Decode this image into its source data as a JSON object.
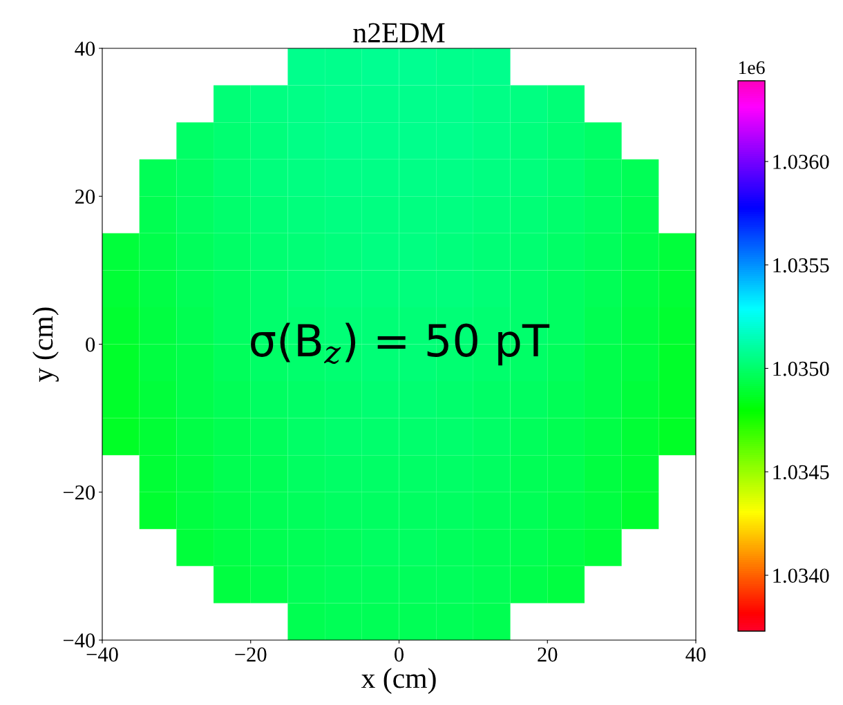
{
  "chart_data": {
    "type": "heatmap",
    "title": "n2EDM",
    "xlabel": "x (cm)",
    "ylabel": "y (cm)",
    "x": [
      -37.5,
      -32.5,
      -27.5,
      -22.5,
      -17.5,
      -12.5,
      -7.5,
      -2.5,
      2.5,
      7.5,
      12.5,
      17.5,
      22.5,
      27.5,
      32.5,
      37.5
    ],
    "y": [
      37.5,
      32.5,
      27.5,
      22.5,
      17.5,
      12.5,
      7.5,
      2.5,
      -2.5,
      -7.5,
      -12.5,
      -17.5,
      -22.5,
      -27.5,
      -32.5,
      -37.5
    ],
    "cells": [
      [
        null,
        null,
        null,
        null,
        null,
        1.03506,
        1.03507,
        1.03508,
        1.03508,
        1.03507,
        1.03506,
        null,
        null,
        null,
        null,
        null
      ],
      [
        null,
        null,
        null,
        1.03502,
        1.03504,
        1.03505,
        1.03506,
        1.03507,
        1.03507,
        1.03506,
        1.03505,
        1.03504,
        1.03502,
        null,
        null,
        null
      ],
      [
        null,
        null,
        1.03499,
        1.03501,
        1.03503,
        1.03505,
        1.03506,
        1.03506,
        1.03506,
        1.03506,
        1.03505,
        1.03503,
        1.03501,
        1.03499,
        null,
        null
      ],
      [
        null,
        1.03496,
        1.03498,
        1.03501,
        1.03503,
        1.03504,
        1.03505,
        1.03505,
        1.03505,
        1.03505,
        1.03504,
        1.03503,
        1.03501,
        1.03498,
        1.03496,
        null
      ],
      [
        null,
        1.03495,
        1.03498,
        1.035,
        1.03502,
        1.03503,
        1.03504,
        1.03504,
        1.03504,
        1.03504,
        1.03503,
        1.03502,
        1.035,
        1.03498,
        1.03495,
        null
      ],
      [
        1.03491,
        1.03494,
        1.03497,
        1.03499,
        1.03501,
        1.03502,
        1.03503,
        1.03504,
        1.03504,
        1.03503,
        1.03502,
        1.03501,
        1.03499,
        1.03497,
        1.03494,
        1.03491
      ],
      [
        1.0349,
        1.03493,
        1.03496,
        1.03498,
        1.035,
        1.03502,
        1.03503,
        1.03503,
        1.03503,
        1.03503,
        1.03502,
        1.035,
        1.03498,
        1.03496,
        1.03493,
        1.0349
      ],
      [
        1.03489,
        1.03492,
        1.03495,
        1.03498,
        1.035,
        1.03501,
        1.03502,
        1.03502,
        1.03502,
        1.03502,
        1.03501,
        1.035,
        1.03498,
        1.03495,
        1.03492,
        1.03489
      ],
      [
        1.03488,
        1.03492,
        1.03494,
        1.03497,
        1.03499,
        1.035,
        1.03501,
        1.03502,
        1.03502,
        1.03501,
        1.035,
        1.03499,
        1.03497,
        1.03494,
        1.03492,
        1.03488
      ],
      [
        1.03488,
        1.03491,
        1.03494,
        1.03496,
        1.03498,
        1.03499,
        1.035,
        1.03501,
        1.03501,
        1.035,
        1.03499,
        1.03498,
        1.03496,
        1.03494,
        1.03491,
        1.03488
      ],
      [
        1.03487,
        1.0349,
        1.03493,
        1.03495,
        1.03497,
        1.03499,
        1.035,
        1.035,
        1.035,
        1.035,
        1.03499,
        1.03497,
        1.03495,
        1.03493,
        1.0349,
        1.03487
      ],
      [
        null,
        1.0349,
        1.03492,
        1.03495,
        1.03496,
        1.03498,
        1.03499,
        1.03499,
        1.03499,
        1.03499,
        1.03498,
        1.03496,
        1.03495,
        1.03492,
        1.0349,
        null
      ],
      [
        null,
        1.03489,
        1.03492,
        1.03494,
        1.03496,
        1.03497,
        1.03498,
        1.03498,
        1.03498,
        1.03498,
        1.03497,
        1.03496,
        1.03494,
        1.03492,
        1.03489,
        null
      ],
      [
        null,
        null,
        1.03491,
        1.03493,
        1.03495,
        1.03496,
        1.03497,
        1.03498,
        1.03498,
        1.03497,
        1.03496,
        1.03495,
        1.03493,
        1.03491,
        null,
        null
      ],
      [
        null,
        null,
        null,
        1.03492,
        1.03494,
        1.03496,
        1.03497,
        1.03497,
        1.03497,
        1.03497,
        1.03496,
        1.03494,
        1.03492,
        null,
        null,
        null
      ],
      [
        null,
        null,
        null,
        null,
        null,
        1.03495,
        1.03496,
        1.03496,
        1.03496,
        1.03496,
        1.03495,
        null,
        null,
        null,
        null,
        null
      ]
    ],
    "xlim": [
      -40,
      40
    ],
    "ylim": [
      -40,
      40
    ],
    "xticks": [
      {
        "value": -40,
        "label": "−40"
      },
      {
        "value": -20,
        "label": "−20"
      },
      0,
      20,
      40
    ],
    "yticks": [
      {
        "value": -40,
        "label": "−40"
      },
      {
        "value": -20,
        "label": "−20"
      },
      0,
      20,
      40
    ],
    "clim": [
      1.03373,
      1.03639
    ],
    "cticks": [
      {
        "value": 1.034,
        "label": "1.0340"
      },
      {
        "value": 1.0345,
        "label": "1.0345"
      },
      {
        "value": 1.035,
        "label": "1.0350"
      },
      {
        "value": 1.0355,
        "label": "1.0355"
      },
      {
        "value": 1.036,
        "label": "1.0360"
      }
    ],
    "annotations": [
      "1e6",
      "σ(B$_{z}$) = 50 pT"
    ]
  }
}
